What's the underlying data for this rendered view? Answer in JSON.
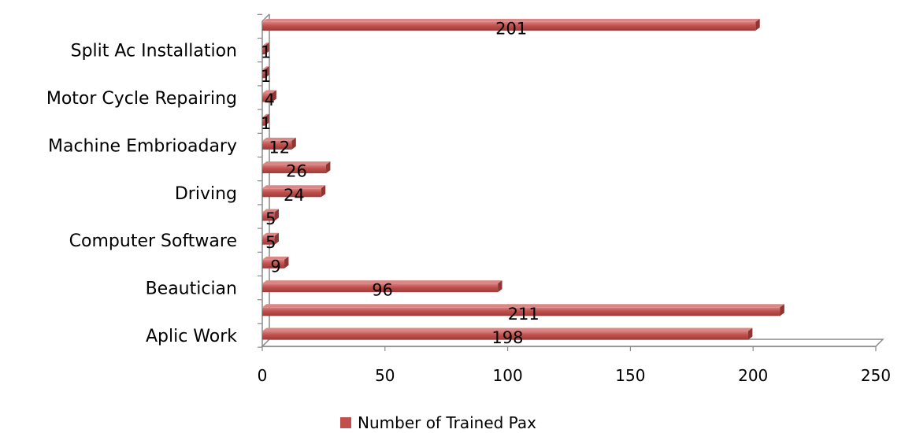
{
  "chart_data": {
    "type": "bar",
    "orientation": "horizontal",
    "style": "3d",
    "categories": [
      "Aplic Work",
      "",
      "Beautician",
      "",
      "Computer Software",
      "",
      "Driving",
      "",
      "Machine Embrioadary",
      "",
      "Motor Cycle Repairing",
      "",
      "Split Ac Installation",
      ""
    ],
    "series": [
      {
        "name": "Number of Trained Pax",
        "color": "#c0504d",
        "values": [
          198,
          211,
          96,
          9,
          5,
          5,
          24,
          26,
          12,
          1,
          4,
          1,
          1,
          201
        ]
      }
    ],
    "xlim": [
      0,
      250
    ],
    "x_ticks": [
      0,
      50,
      100,
      150,
      200,
      250
    ],
    "data_labels": true,
    "grid": false,
    "legend_position": "bottom"
  }
}
